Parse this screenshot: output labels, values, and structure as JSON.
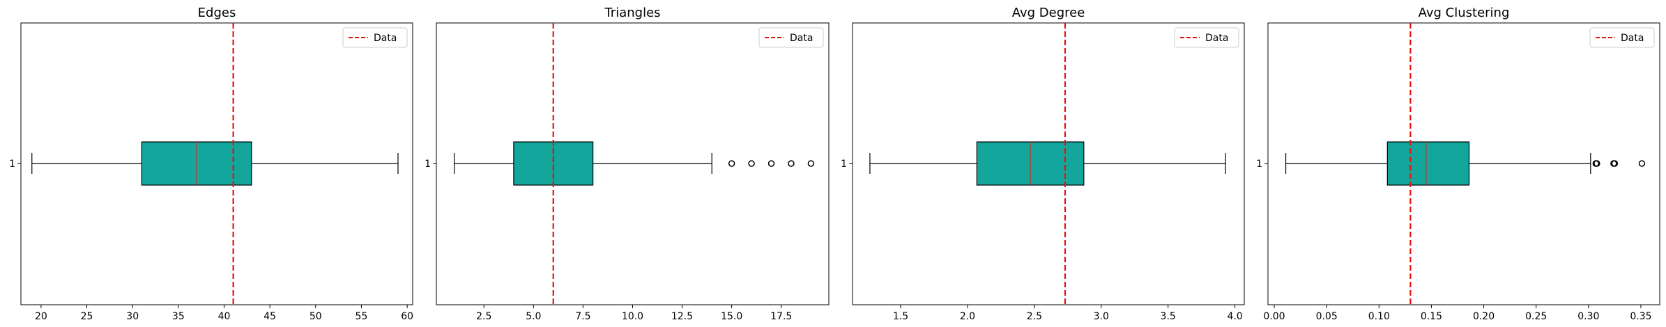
{
  "chart_data": [
    {
      "type": "boxplot",
      "title": "Edges",
      "category_label": "1",
      "box": {
        "whisker_low": 19,
        "q1": 31,
        "median": 37,
        "q3": 43,
        "whisker_high": 59
      },
      "outliers": [],
      "reference_line": {
        "value": 41,
        "label": "Data"
      },
      "xlim": [
        17.8,
        60.6
      ],
      "xticks": [
        20,
        25,
        30,
        35,
        40,
        45,
        50,
        55,
        60
      ],
      "xtick_labels": [
        "20",
        "25",
        "30",
        "35",
        "40",
        "45",
        "50",
        "55",
        "60"
      ],
      "legend_position": "top-right"
    },
    {
      "type": "boxplot",
      "title": "Triangles",
      "category_label": "1",
      "box": {
        "whisker_low": 1,
        "q1": 4,
        "median": 6,
        "q3": 8,
        "whisker_high": 14
      },
      "outliers": [
        15,
        16,
        17,
        18,
        19
      ],
      "reference_line": {
        "value": 6,
        "label": "Data"
      },
      "xlim": [
        0.1,
        19.9
      ],
      "xticks": [
        2.5,
        5.0,
        7.5,
        10.0,
        12.5,
        15.0,
        17.5
      ],
      "xtick_labels": [
        "2.5",
        "5.0",
        "7.5",
        "10.0",
        "12.5",
        "15.0",
        "17.5"
      ],
      "legend_position": "top-right"
    },
    {
      "type": "boxplot",
      "title": "Avg Degree",
      "category_label": "1",
      "box": {
        "whisker_low": 1.27,
        "q1": 2.07,
        "median": 2.47,
        "q3": 2.87,
        "whisker_high": 3.93
      },
      "outliers": [],
      "reference_line": {
        "value": 2.73,
        "label": "Data"
      },
      "xlim": [
        1.14,
        4.07
      ],
      "xticks": [
        1.5,
        2.0,
        2.5,
        3.0,
        3.5,
        4.0
      ],
      "xtick_labels": [
        "1.5",
        "2.0",
        "2.5",
        "3.0",
        "3.5",
        "4.0"
      ],
      "legend_position": "top-right"
    },
    {
      "type": "boxplot",
      "title": "Avg Clustering",
      "category_label": "1",
      "box": {
        "whisker_low": 0.011,
        "q1": 0.108,
        "median": 0.145,
        "q3": 0.186,
        "whisker_high": 0.302
      },
      "outliers": [
        0.307,
        0.308,
        0.324,
        0.325,
        0.351
      ],
      "reference_line": {
        "value": 0.13,
        "label": "Data"
      },
      "xlim": [
        -0.006,
        0.368
      ],
      "xticks": [
        0.0,
        0.05,
        0.1,
        0.15,
        0.2,
        0.25,
        0.3,
        0.35
      ],
      "xtick_labels": [
        "0.00",
        "0.05",
        "0.10",
        "0.15",
        "0.20",
        "0.25",
        "0.30",
        "0.35"
      ],
      "legend_position": "top-right"
    }
  ],
  "colors": {
    "box_fill": "#13a69c",
    "median": "#c0392b",
    "reference_line": "#e8120c",
    "axes": "#000000",
    "outlier_edge": "#000000"
  }
}
